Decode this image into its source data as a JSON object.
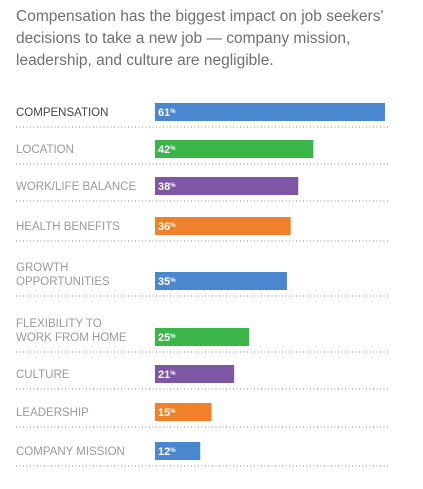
{
  "headline": [
    "Compensation has the biggest impact on job seekers'",
    "decisions to take a new job — company mission,",
    "leadership, and culture are negligible."
  ],
  "colors": {
    "blue": "#4a87cf",
    "green": "#3bb54a",
    "purple": "#7d56a4",
    "orange": "#f0812a"
  },
  "chart_data": {
    "type": "bar",
    "orientation": "horizontal",
    "unit": "%",
    "xlim": [
      0,
      100
    ],
    "categories": [
      {
        "label": [
          "COMPENSATION"
        ],
        "value": 61,
        "color": "blue"
      },
      {
        "label": [
          "LOCATION"
        ],
        "value": 42,
        "color": "green"
      },
      {
        "label": [
          "WORK/LIFE BALANCE"
        ],
        "value": 38,
        "color": "purple"
      },
      {
        "label": [
          "HEALTH BENEFITS"
        ],
        "value": 36,
        "color": "orange"
      },
      {
        "label": [
          "GROWTH",
          "OPPORTUNITIES"
        ],
        "value": 35,
        "color": "blue"
      },
      {
        "label": [
          "FLEXIBILITY TO",
          "WORK FROM HOME"
        ],
        "value": 25,
        "color": "green"
      },
      {
        "label": [
          "CULTURE"
        ],
        "value": 21,
        "color": "purple"
      },
      {
        "label": [
          "LEADERSHIP"
        ],
        "value": 15,
        "color": "orange"
      },
      {
        "label": [
          "COMPANY MISSION"
        ],
        "value": 12,
        "color": "blue"
      }
    ]
  }
}
